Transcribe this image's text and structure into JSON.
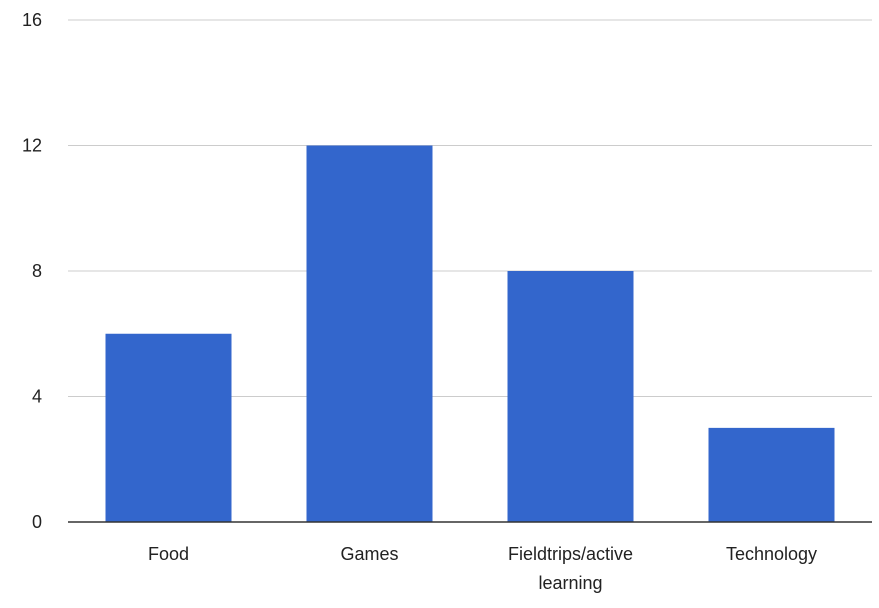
{
  "chart_data": {
    "type": "bar",
    "categories": [
      "Food",
      "Games",
      "Fieldtrips/active learning",
      "Technology"
    ],
    "category_label_lines": [
      [
        "Food"
      ],
      [
        "Games"
      ],
      [
        "Fieldtrips/active",
        "learning"
      ],
      [
        "Technology"
      ]
    ],
    "values": [
      6,
      12,
      8,
      3
    ],
    "ylim": [
      0,
      16
    ],
    "yticks": [
      "0",
      "4",
      "8",
      "12",
      "16"
    ],
    "grid": true,
    "legend": "none",
    "colors": {
      "bar": "#3366cc",
      "grid": "#cccccc",
      "axis": "#333333",
      "text": "#222222"
    }
  }
}
